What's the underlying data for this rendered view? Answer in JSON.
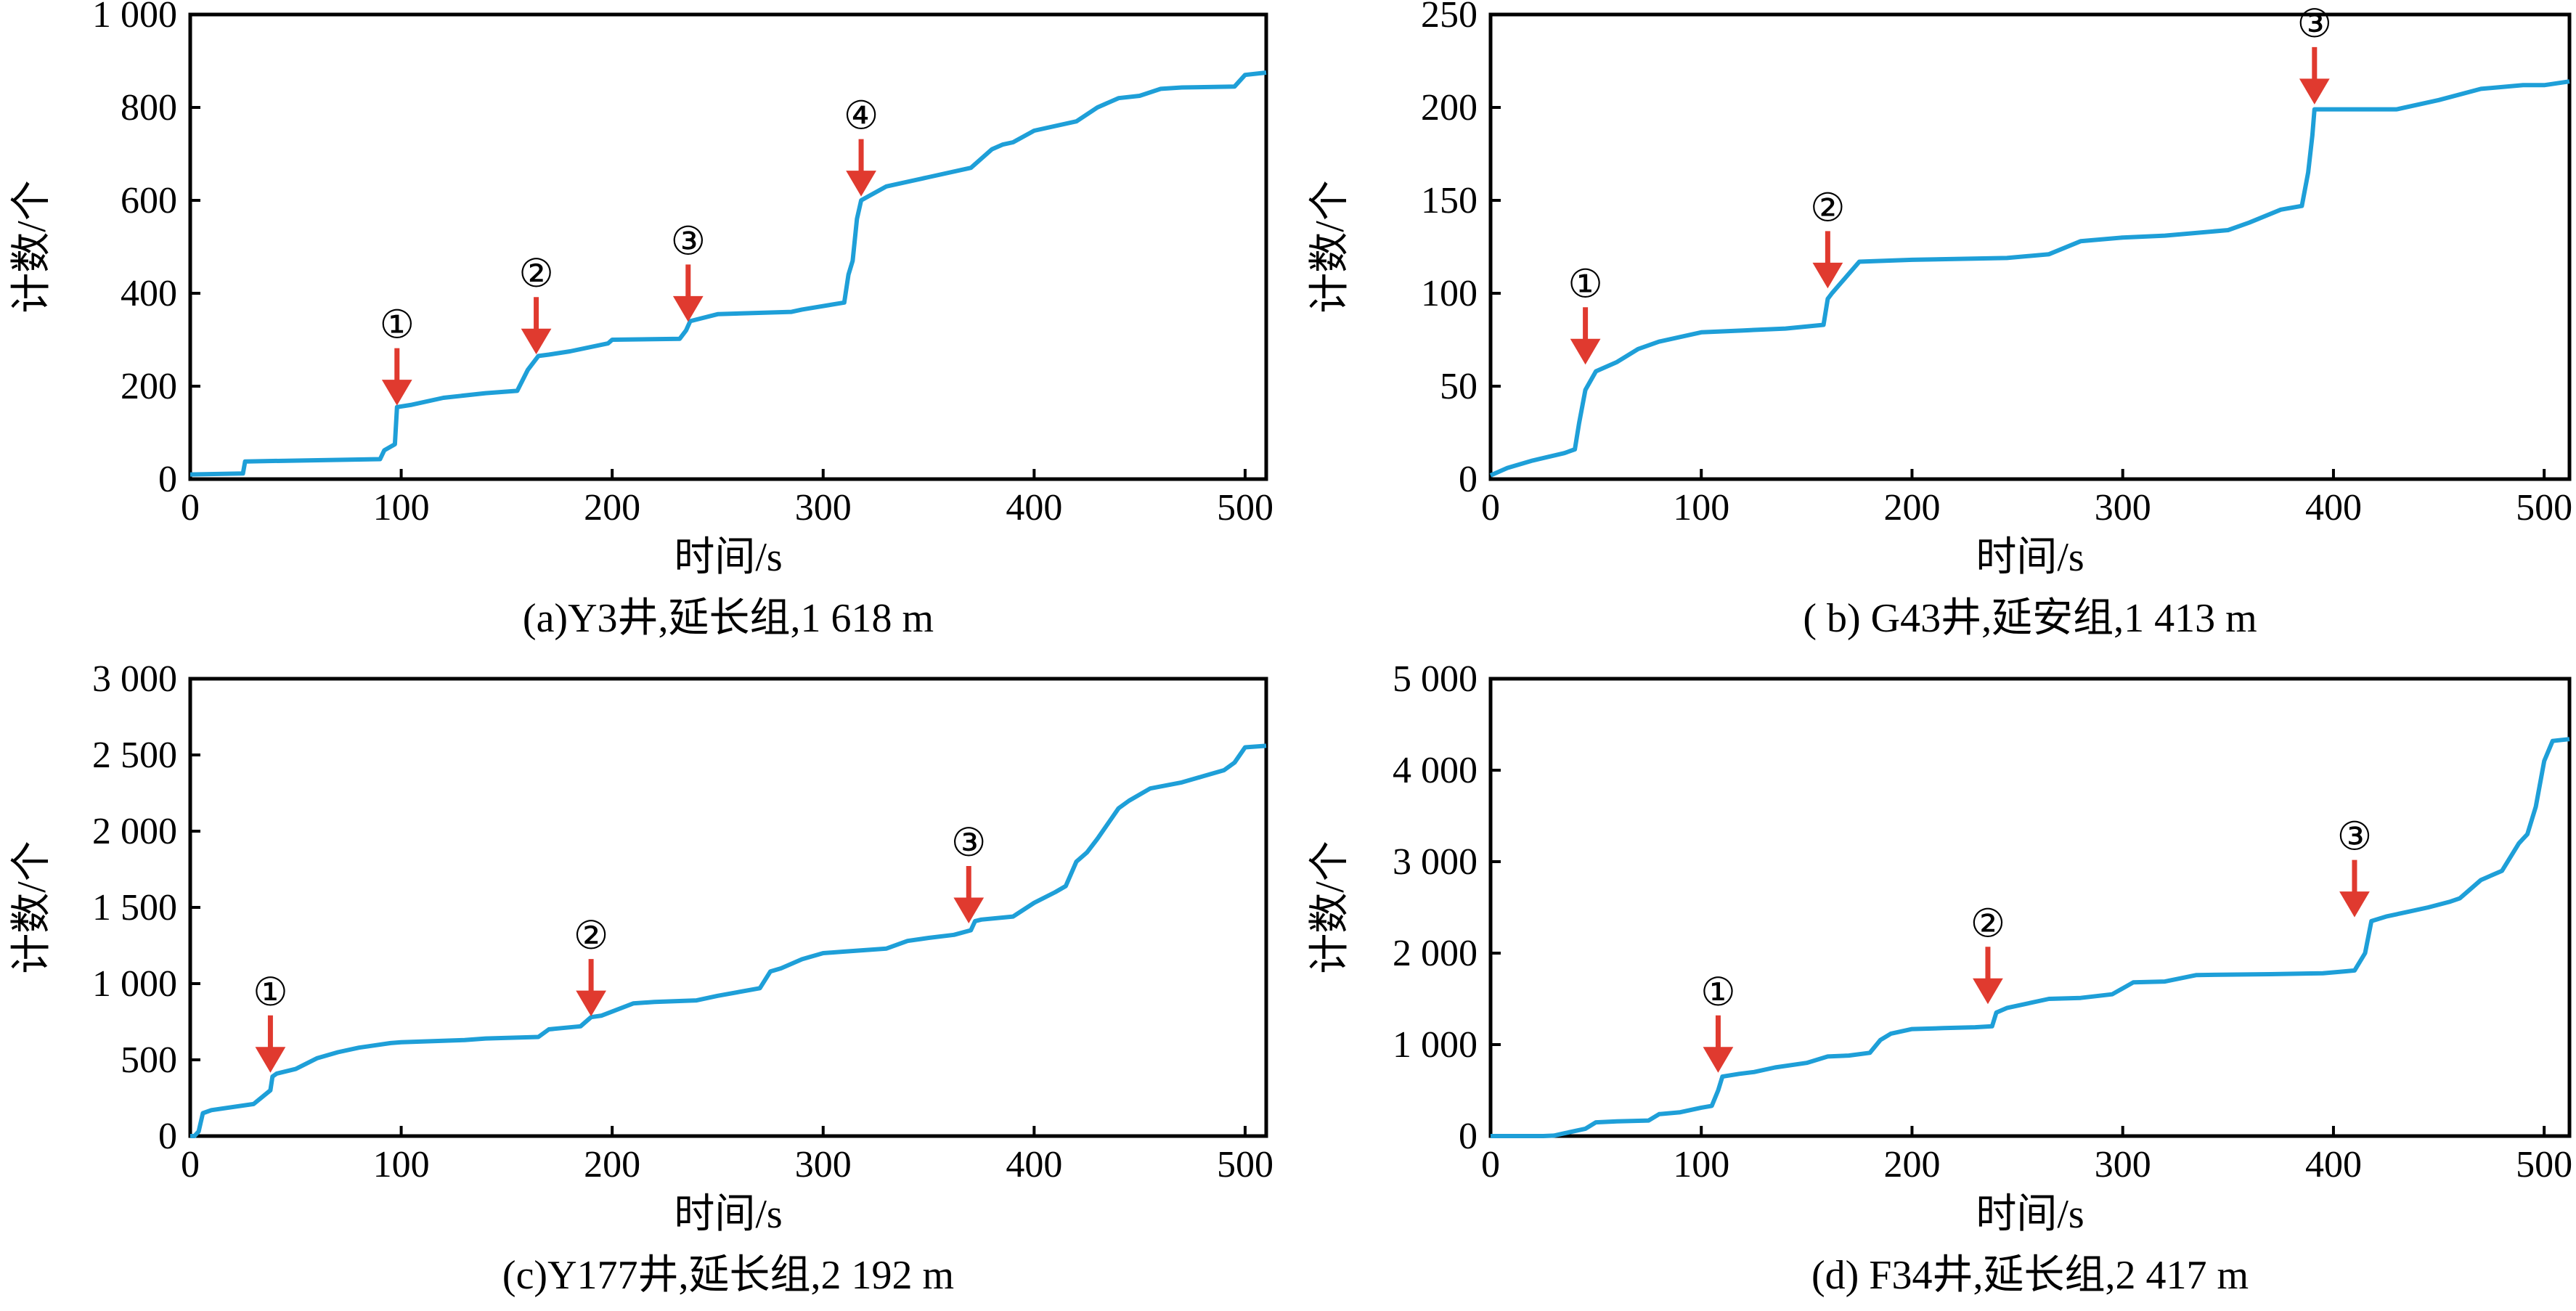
{
  "chart_data": [
    {
      "type": "line",
      "caption": "(a)Y3井,延长组,1 618 m",
      "xlabel": "时间/s",
      "ylabel": "计数/个",
      "xlim": [
        0,
        510
      ],
      "ylim": [
        0,
        1000
      ],
      "xticks": [
        0,
        100,
        200,
        300,
        400,
        500
      ],
      "yticks": [
        0,
        200,
        400,
        600,
        800,
        1000
      ],
      "yticklabels": [
        "0",
        "200",
        "400",
        "600",
        "800",
        "1 000"
      ],
      "series": [
        {
          "x": [
            0,
            25,
            26,
            90,
            92,
            97,
            98,
            105,
            120,
            140,
            155,
            160,
            165,
            170,
            180,
            198,
            200,
            232,
            235,
            237,
            250,
            285,
            290,
            310,
            312,
            314,
            316,
            318,
            320,
            330,
            350,
            370,
            380,
            385,
            390,
            400,
            420,
            430,
            440,
            450,
            460,
            470,
            495,
            500,
            510
          ],
          "y": [
            10,
            12,
            38,
            43,
            62,
            75,
            155,
            160,
            175,
            185,
            190,
            235,
            265,
            268,
            275,
            292,
            300,
            302,
            320,
            340,
            355,
            360,
            365,
            380,
            440,
            470,
            560,
            600,
            605,
            630,
            650,
            670,
            710,
            720,
            725,
            750,
            770,
            800,
            820,
            825,
            840,
            843,
            845,
            870,
            875
          ]
        }
      ],
      "markers": [
        {
          "label": "①",
          "x": 98,
          "y": 160
        },
        {
          "label": "②",
          "x": 164,
          "y": 270
        },
        {
          "label": "③",
          "x": 236,
          "y": 340
        },
        {
          "label": "④",
          "x": 318,
          "y": 610
        }
      ]
    },
    {
      "type": "line",
      "caption": "( b) G43井,延安组,1 413 m",
      "xlabel": "时间/s",
      "ylabel": "计数/个",
      "xlim": [
        0,
        512
      ],
      "ylim": [
        0,
        250
      ],
      "xticks": [
        0,
        100,
        200,
        300,
        400,
        500
      ],
      "yticks": [
        0,
        50,
        100,
        150,
        200,
        250
      ],
      "yticklabels": [
        "0",
        "50",
        "100",
        "150",
        "200",
        "250"
      ],
      "series": [
        {
          "x": [
            0,
            8,
            20,
            35,
            40,
            42,
            45,
            50,
            60,
            70,
            80,
            100,
            120,
            140,
            158,
            160,
            162,
            175,
            200,
            245,
            265,
            280,
            300,
            320,
            350,
            360,
            375,
            385,
            388,
            390,
            391,
            400,
            410,
            430,
            450,
            470,
            490,
            500,
            512
          ],
          "y": [
            2,
            6,
            10,
            14,
            16,
            30,
            48,
            58,
            63,
            70,
            74,
            79,
            80,
            81,
            83,
            97,
            100,
            117,
            118,
            119,
            121,
            128,
            130,
            131,
            134,
            138,
            145,
            147,
            165,
            185,
            199,
            199,
            199,
            199,
            204,
            210,
            212,
            212,
            214
          ]
        }
      ],
      "markers": [
        {
          "label": "①",
          "x": 45,
          "y": 62
        },
        {
          "label": "②",
          "x": 160,
          "y": 103
        },
        {
          "label": "③",
          "x": 391,
          "y": 202
        }
      ]
    },
    {
      "type": "line",
      "caption": "(c)Y177井,延长组,2 192 m",
      "xlabel": "时间/s",
      "ylabel": "计数/个",
      "xlim": [
        0,
        510
      ],
      "ylim": [
        0,
        3000
      ],
      "xticks": [
        0,
        100,
        200,
        300,
        400,
        500
      ],
      "yticks": [
        0,
        500,
        1000,
        1500,
        2000,
        2500,
        3000
      ],
      "yticklabels": [
        "0",
        "500",
        "1 000",
        "1 500",
        "2 000",
        "2 500",
        "3 000"
      ],
      "series": [
        {
          "x": [
            0,
            2,
            4,
            6,
            10,
            30,
            38,
            39,
            40,
            41,
            50,
            60,
            70,
            80,
            95,
            100,
            130,
            140,
            165,
            170,
            185,
            190,
            195,
            210,
            220,
            240,
            250,
            270,
            275,
            280,
            290,
            300,
            310,
            330,
            340,
            350,
            362,
            370,
            372,
            375,
            390,
            400,
            410,
            415,
            420,
            425,
            430,
            440,
            445,
            455,
            470,
            480,
            490,
            495,
            500,
            510
          ],
          "y": [
            0,
            0,
            30,
            150,
            170,
            210,
            300,
            390,
            400,
            410,
            440,
            510,
            550,
            580,
            610,
            615,
            630,
            640,
            650,
            700,
            720,
            780,
            790,
            870,
            880,
            890,
            920,
            970,
            1080,
            1100,
            1160,
            1200,
            1210,
            1230,
            1280,
            1300,
            1320,
            1350,
            1410,
            1420,
            1440,
            1530,
            1600,
            1640,
            1800,
            1860,
            1950,
            2150,
            2200,
            2280,
            2320,
            2360,
            2400,
            2450,
            2550,
            2560
          ]
        }
      ],
      "markers": [
        {
          "label": "①",
          "x": 38,
          "y": 420
        },
        {
          "label": "②",
          "x": 190,
          "y": 790
        },
        {
          "label": "③",
          "x": 369,
          "y": 1400
        }
      ]
    },
    {
      "type": "line",
      "caption": "(d) F34井,延长组,2 417 m",
      "xlabel": "时间/s",
      "ylabel": "计数/个",
      "xlim": [
        0,
        512
      ],
      "ylim": [
        0,
        5000
      ],
      "xticks": [
        0,
        100,
        200,
        300,
        400,
        500
      ],
      "yticks": [
        0,
        1000,
        2000,
        3000,
        4000,
        5000
      ],
      "yticklabels": [
        "0",
        "1 000",
        "2 000",
        "3 000",
        "4 000",
        "5 000"
      ],
      "series": [
        {
          "x": [
            0,
            25,
            30,
            35,
            45,
            50,
            60,
            75,
            80,
            90,
            100,
            105,
            108,
            110,
            118,
            125,
            135,
            150,
            160,
            170,
            180,
            185,
            190,
            200,
            215,
            230,
            238,
            240,
            245,
            255,
            265,
            280,
            295,
            305,
            320,
            335,
            370,
            395,
            405,
            410,
            415,
            418,
            425,
            435,
            445,
            455,
            460,
            465,
            470,
            475,
            480,
            488,
            490,
            492,
            496,
            500,
            504,
            512
          ],
          "y": [
            0,
            0,
            5,
            30,
            80,
            150,
            160,
            170,
            240,
            260,
            310,
            330,
            500,
            650,
            680,
            700,
            750,
            800,
            870,
            880,
            910,
            1050,
            1120,
            1170,
            1180,
            1190,
            1200,
            1350,
            1400,
            1450,
            1500,
            1510,
            1550,
            1680,
            1690,
            1760,
            1770,
            1780,
            1800,
            1810,
            2000,
            2350,
            2400,
            2450,
            2500,
            2560,
            2600,
            2700,
            2800,
            2850,
            2900,
            3200,
            3250,
            3300,
            3600,
            4100,
            4320,
            4340
          ]
        }
      ],
      "markers": [
        {
          "label": "①",
          "x": 108,
          "y": 700
        },
        {
          "label": "②",
          "x": 236,
          "y": 1450
        },
        {
          "label": "③",
          "x": 410,
          "y": 2400
        }
      ]
    }
  ]
}
